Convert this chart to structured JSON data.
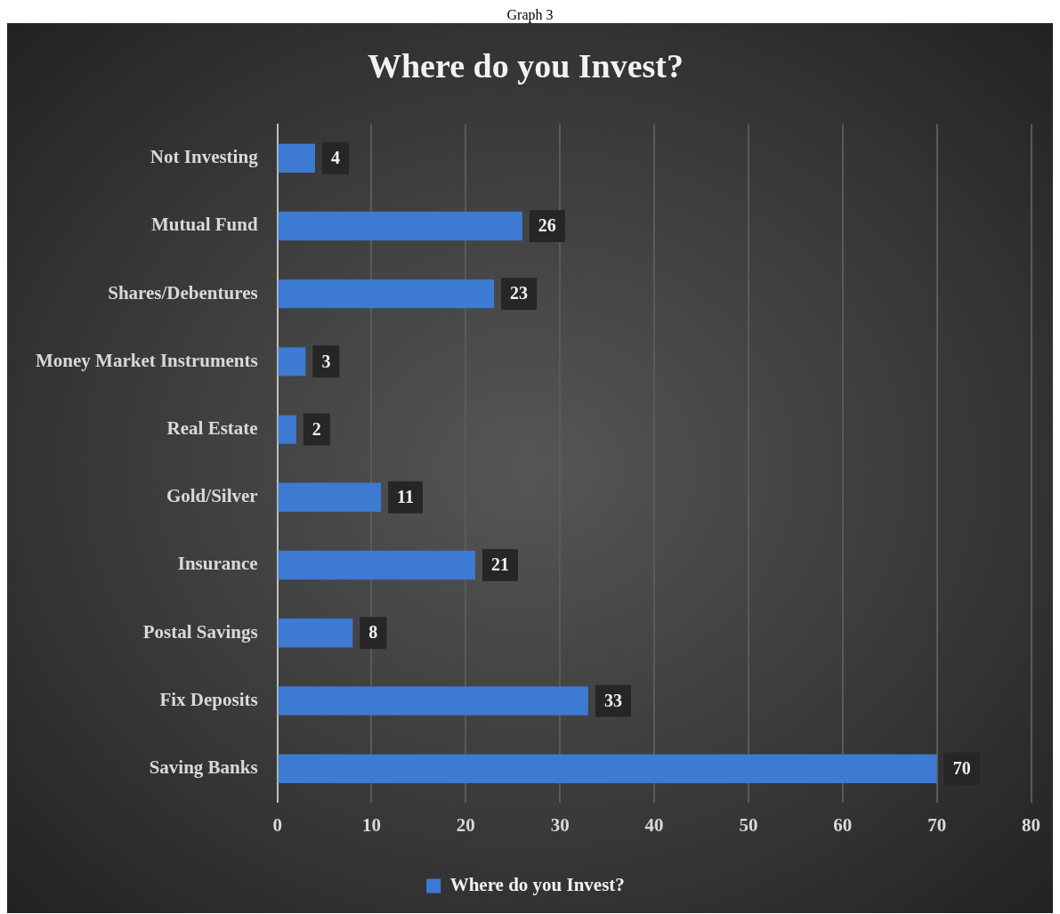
{
  "chart_data": {
    "type": "bar",
    "orientation": "horizontal",
    "title": "Where do you Invest?",
    "annotations": [
      "Graph 3"
    ],
    "categories": [
      "Not Investing",
      "Mutual Fund",
      "Shares/Debentures",
      "Money Market Instruments",
      "Real Estate",
      "Gold/Silver",
      "Insurance",
      "Postal Savings",
      "Fix Deposits",
      "Saving Banks"
    ],
    "series": [
      {
        "name": "Where do you Invest?",
        "color": "#3d7ad2",
        "values": [
          4,
          26,
          23,
          3,
          2,
          11,
          21,
          8,
          33,
          70
        ]
      }
    ],
    "xlim": [
      0,
      80
    ],
    "xticks": [
      0,
      10,
      20,
      30,
      40,
      50,
      60,
      70,
      80
    ],
    "grid": "x",
    "legend": "bottom",
    "data_labels": true
  }
}
